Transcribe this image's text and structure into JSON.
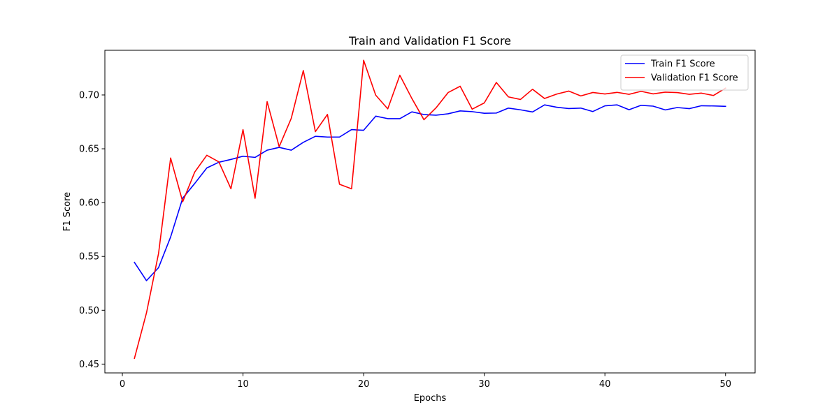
{
  "chart_data": {
    "type": "line",
    "title": "Train and Validation F1 Score",
    "xlabel": "Epochs",
    "ylabel": "F1 Score",
    "xlim": [
      -1.45,
      52.45
    ],
    "ylim": [
      0.4418,
      0.7415
    ],
    "xticks": [
      "0",
      "10",
      "20",
      "30",
      "40",
      "50"
    ],
    "yticks": [
      "0.45",
      "0.50",
      "0.55",
      "0.60",
      "0.65",
      "0.70"
    ],
    "legend_position": "top-right",
    "grid": false,
    "x": [
      1,
      2,
      3,
      4,
      5,
      6,
      7,
      8,
      9,
      10,
      11,
      12,
      13,
      14,
      15,
      16,
      17,
      18,
      19,
      20,
      21,
      22,
      23,
      24,
      25,
      26,
      27,
      28,
      29,
      30,
      31,
      32,
      33,
      34,
      35,
      36,
      37,
      38,
      39,
      40,
      41,
      42,
      43,
      44,
      45,
      46,
      47,
      48,
      49,
      50
    ],
    "series": [
      {
        "name": "Train F1 Score",
        "color": "#0000ff",
        "values": [
          0.5445,
          0.5275,
          0.5396,
          0.5681,
          0.6041,
          0.6178,
          0.6322,
          0.6375,
          0.6401,
          0.6431,
          0.642,
          0.6487,
          0.6513,
          0.6487,
          0.656,
          0.6616,
          0.6609,
          0.6609,
          0.6678,
          0.6672,
          0.6803,
          0.678,
          0.678,
          0.6843,
          0.6818,
          0.6812,
          0.6825,
          0.6852,
          0.6845,
          0.683,
          0.6832,
          0.6878,
          0.6862,
          0.6842,
          0.6908,
          0.6886,
          0.6874,
          0.6878,
          0.6846,
          0.6899,
          0.6908,
          0.6863,
          0.6904,
          0.6896,
          0.6861,
          0.6883,
          0.6873,
          0.69,
          0.6898,
          0.6894
        ]
      },
      {
        "name": "Validation F1 Score",
        "color": "#ff0000",
        "values": [
          0.4553,
          0.4976,
          0.5528,
          0.6414,
          0.6008,
          0.6284,
          0.644,
          0.6378,
          0.6129,
          0.6678,
          0.604,
          0.6938,
          0.6519,
          0.6783,
          0.7227,
          0.6659,
          0.6819,
          0.617,
          0.6128,
          0.7322,
          0.6998,
          0.6871,
          0.7183,
          0.6967,
          0.677,
          0.688,
          0.7022,
          0.7081,
          0.6868,
          0.6926,
          0.7116,
          0.6982,
          0.6958,
          0.7053,
          0.6967,
          0.7008,
          0.7036,
          0.6991,
          0.7023,
          0.7009,
          0.7024,
          0.7006,
          0.7034,
          0.701,
          0.7026,
          0.7022,
          0.7006,
          0.7017,
          0.6995,
          0.7063
        ]
      }
    ]
  }
}
